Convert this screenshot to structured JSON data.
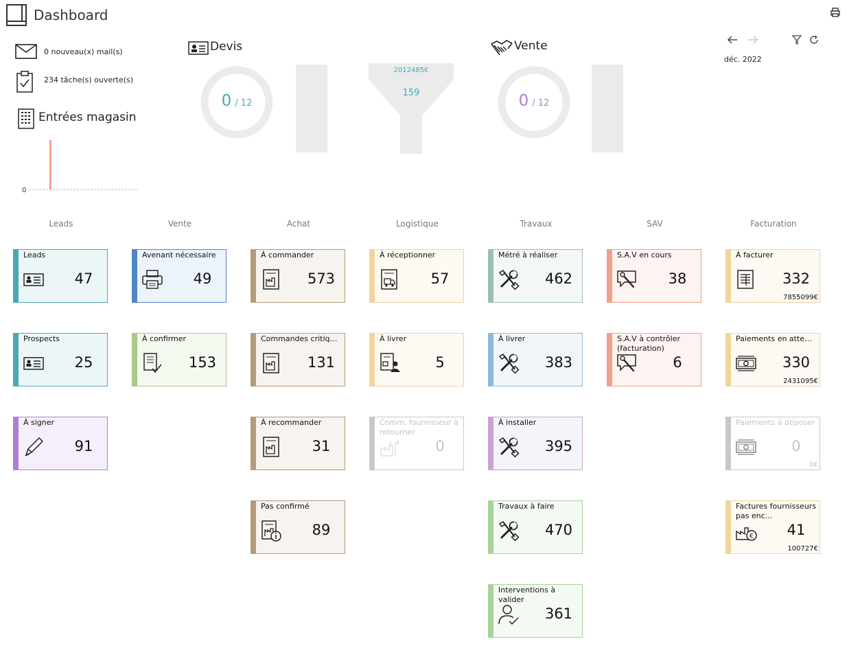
{
  "header": {
    "title": "Dashboard",
    "logo_icon": "layout-icon",
    "print_icon": "print-icon"
  },
  "summary": {
    "mail": "0 nouveau(x) mail(s)",
    "tasks": "234 tâche(s) ouverte(s)",
    "stock_title": "Entrées magasin",
    "stock_axis_zero": "0"
  },
  "devis": {
    "title": "Devis",
    "count": "0",
    "total": "/ 12",
    "color": "#4aa8b6"
  },
  "funnel": {
    "amount": "2012485€",
    "count": "159",
    "color": "#4aa8b6"
  },
  "vente": {
    "title": "Vente",
    "count": "0",
    "total": "/ 12",
    "color": "#b07fd4"
  },
  "controls": {
    "period": "déc. 2022"
  },
  "columns": [
    "Leads",
    "Vente",
    "Achat",
    "Logistique",
    "Travaux",
    "SAV",
    "Facturation"
  ],
  "cards": {
    "leads": [
      {
        "label": "Leads",
        "value": "47",
        "icon": "contact-card-icon",
        "accent": "#4aa8b6",
        "bg": "#edf6f7"
      },
      {
        "label": "Prospects",
        "value": "25",
        "icon": "contact-card-icon",
        "accent": "#4aa8b6",
        "bg": "#edf6f7"
      },
      {
        "label": "À signer",
        "value": "91",
        "icon": "pen-icon",
        "accent": "#b07fd4",
        "bg": "#f6effb"
      }
    ],
    "vente": [
      {
        "label": "Avenant nécessaire",
        "value": "49",
        "icon": "printer-icon",
        "accent": "#4f86c6",
        "bg": "#edf3fb"
      },
      {
        "label": "À confirmer",
        "value": "153",
        "icon": "document-check-icon",
        "accent": "#a8c98a",
        "bg": "#f4f9ef"
      }
    ],
    "achat": [
      {
        "label": "À commander",
        "value": "573",
        "icon": "factory-document-icon",
        "accent": "#b59b7c",
        "bg": "#f7f3ee"
      },
      {
        "label": "Commandes critiques",
        "value": "131",
        "icon": "factory-document-icon",
        "accent": "#b59b7c",
        "bg": "#f7f3ee"
      },
      {
        "label": "À recommander",
        "value": "31",
        "icon": "factory-document-icon",
        "accent": "#b59b7c",
        "bg": "#f7f3ee"
      },
      {
        "label": "Pas confirmé",
        "value": "89",
        "icon": "factory-info-icon",
        "accent": "#b59b7c",
        "bg": "#f7f3ee"
      }
    ],
    "logistique": [
      {
        "label": "À réceptionner",
        "value": "57",
        "icon": "delivery-document-icon",
        "accent": "#f0d49c",
        "bg": "#fefaf3"
      },
      {
        "label": "À livrer",
        "value": "5",
        "icon": "delivery-person-icon",
        "accent": "#f0d49c",
        "bg": "#fefaf3"
      },
      {
        "label": "Comm. fournisseur à retourner",
        "value": "0",
        "icon": "factory-return-icon",
        "accent": "#c8c8c8",
        "bg": "#ffffff",
        "disabled": true
      }
    ],
    "travaux": [
      {
        "label": "Métré à réaliser",
        "value": "462",
        "icon": "tools-icon",
        "accent": "#9ebdb8",
        "bg": "#f3f8f6"
      },
      {
        "label": "À livrer",
        "value": "383",
        "icon": "tools-icon",
        "accent": "#8fb9d6",
        "bg": "#f0f6fa"
      },
      {
        "label": "À installer",
        "value": "395",
        "icon": "tools-icon",
        "accent": "#c9a4cf",
        "bg": "#f4f5fa"
      },
      {
        "label": "Travaux à faire",
        "value": "470",
        "icon": "tools-icon",
        "accent": "#a8d39a",
        "bg": "#f3faf1"
      },
      {
        "label": "Interventions à valider",
        "value": "361",
        "icon": "user-check-icon",
        "accent": "#a8d39a",
        "bg": "#f3faf1"
      }
    ],
    "sav": [
      {
        "label": "S.A.V en cours",
        "value": "38",
        "icon": "service-chat-icon",
        "accent": "#f1a08c",
        "bg": "#fdf3f0"
      },
      {
        "label": "S.A.V à contrôler (facturation)",
        "value": "6",
        "icon": "service-chat-icon",
        "accent": "#f1a08c",
        "bg": "#fdf3f0"
      }
    ],
    "facturation": [
      {
        "label": "À facturer",
        "value": "332",
        "icon": "invoice-icon",
        "accent": "#f0d49c",
        "bg": "#fefaf3",
        "amount": "7855099€"
      },
      {
        "label": "Paiements en attente",
        "value": "330",
        "icon": "money-icon",
        "accent": "#f0d49c",
        "bg": "#fefaf3",
        "amount": "2431095€"
      },
      {
        "label": "Paiements à déposer",
        "value": "0",
        "icon": "money-icon",
        "accent": "#c8c8c8",
        "bg": "#ffffff",
        "amount": "0€",
        "disabled": true
      },
      {
        "label": "Factures fournisseurs pas enc...",
        "value": "41",
        "icon": "factory-euro-icon",
        "accent": "#f0d49c",
        "bg": "#fefaf3",
        "amount": "100727€"
      }
    ]
  }
}
